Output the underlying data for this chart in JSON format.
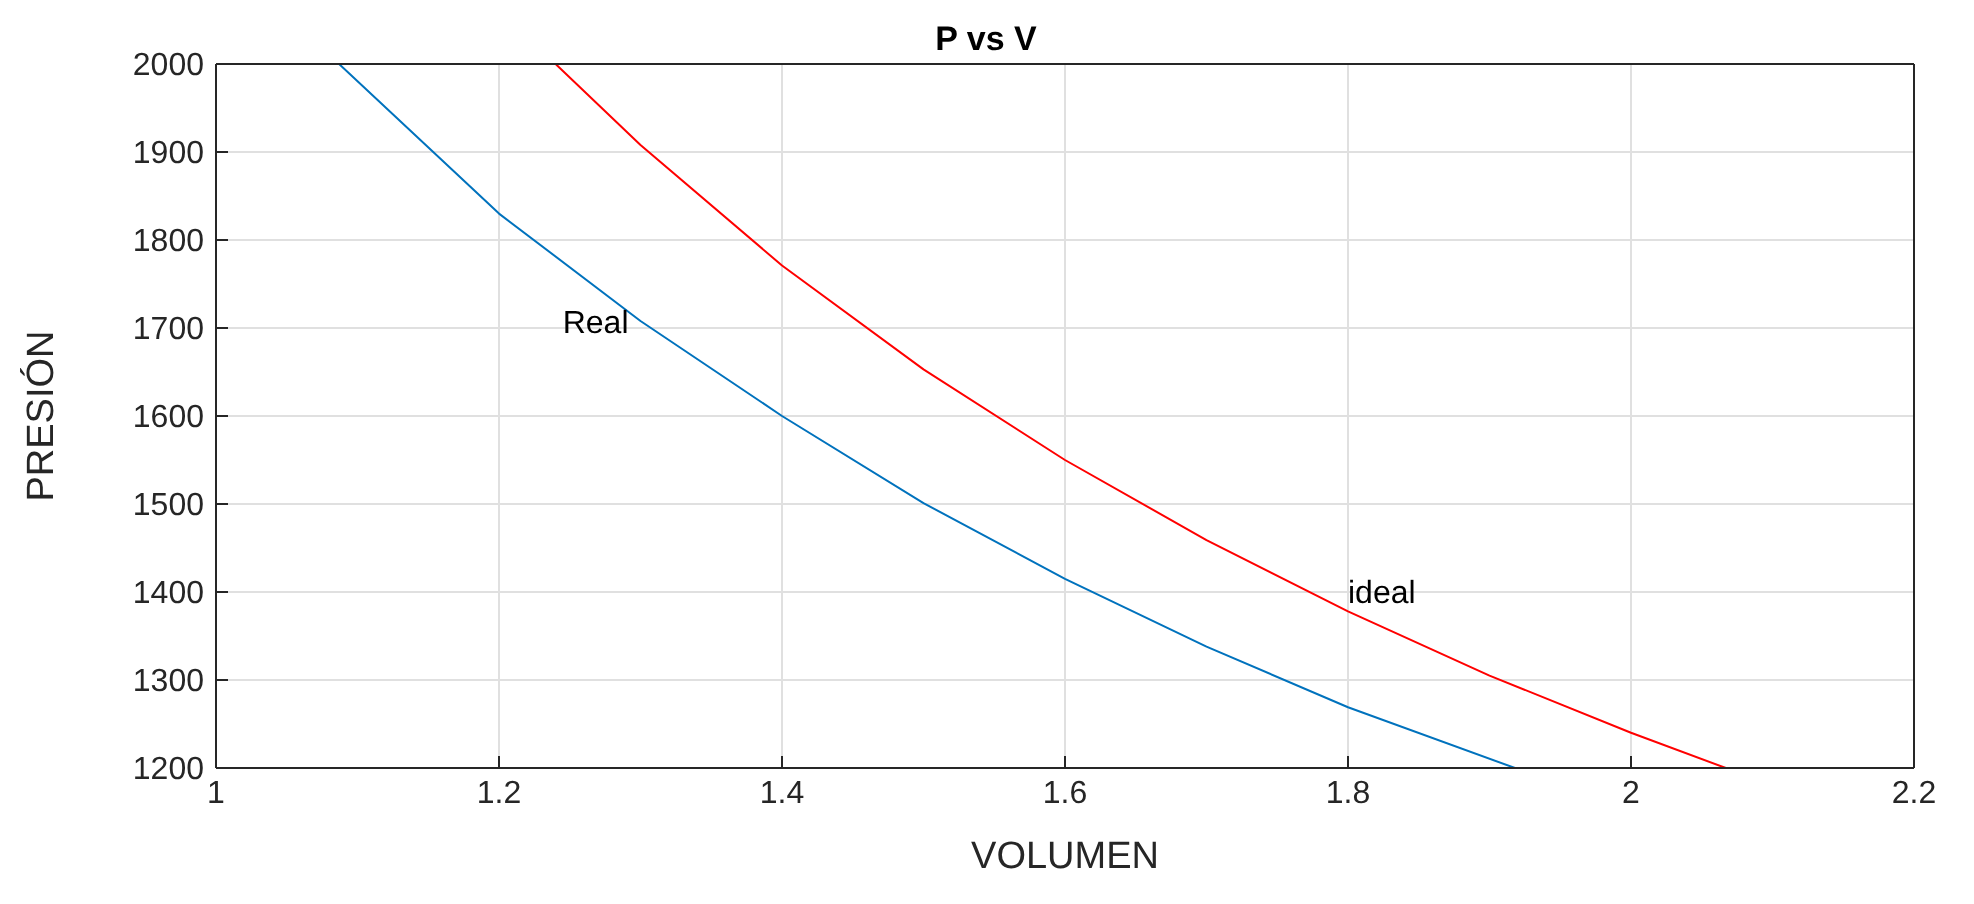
{
  "chart_data": {
    "type": "line",
    "title": "P vs V",
    "xlabel": "VOLUMEN",
    "ylabel": "PRESIÓN",
    "series": [
      {
        "name": "Real",
        "color": "#0072bd",
        "x": [
          1.087,
          1.2,
          1.3,
          1.4,
          1.5,
          1.6,
          1.7,
          1.8,
          1.918
        ],
        "values": [
          2000,
          1830,
          1708,
          1600,
          1501,
          1415,
          1338,
          1269,
          1200
        ]
      },
      {
        "name": "ideal",
        "color": "#ff0000",
        "x": [
          1.24,
          1.3,
          1.4,
          1.5,
          1.6,
          1.7,
          1.8,
          1.9,
          2.0,
          2.067
        ],
        "values": [
          2000,
          1908,
          1771,
          1653,
          1550,
          1459,
          1378,
          1305,
          1240,
          1200
        ]
      }
    ],
    "xlim": [
      1,
      2.2
    ],
    "xticks": [
      1,
      1.2,
      1.4,
      1.6,
      1.8,
      2,
      2.2
    ],
    "ylim": [
      1200,
      2000
    ],
    "yticks": [
      1200,
      1300,
      1400,
      1500,
      1600,
      1700,
      1800,
      1900,
      2000
    ],
    "grid": true,
    "marker": "none",
    "line_style": "solid"
  }
}
